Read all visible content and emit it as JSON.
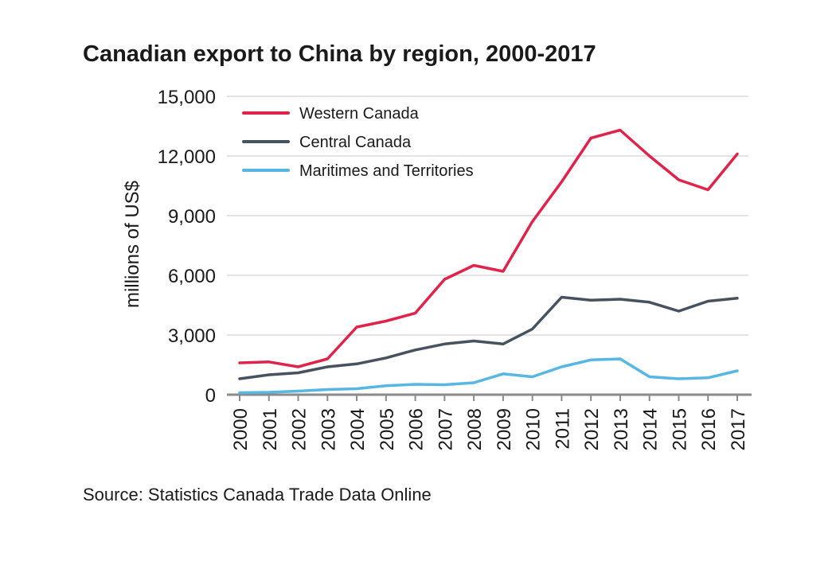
{
  "chart_data": {
    "type": "line",
    "title": "Canadian export to China by region, 2000-2017",
    "xlabel": "",
    "ylabel": "millions of US$",
    "ylim": [
      0,
      15000
    ],
    "yticks": [
      0,
      3000,
      6000,
      9000,
      12000,
      15000
    ],
    "ytick_labels": [
      "0",
      "3,000",
      "6,000",
      "9,000",
      "12,000",
      "15,000"
    ],
    "categories": [
      "2000",
      "2001",
      "2002",
      "2003",
      "2004",
      "2005",
      "2006",
      "2007",
      "2008",
      "2009",
      "2010",
      "2011",
      "2012",
      "2013",
      "2014",
      "2015",
      "2016",
      "2017"
    ],
    "grid": true,
    "legend_position": "top-left",
    "series": [
      {
        "name": "Western Canada",
        "color": "#e0234a",
        "values": [
          1600,
          1650,
          1400,
          1800,
          3400,
          3700,
          4100,
          5800,
          6500,
          6200,
          8700,
          10700,
          12900,
          13300,
          12000,
          10800,
          10300,
          12100
        ]
      },
      {
        "name": "Central Canada",
        "color": "#46525e",
        "values": [
          800,
          1000,
          1100,
          1400,
          1550,
          1850,
          2250,
          2550,
          2700,
          2550,
          3300,
          4900,
          4750,
          4800,
          4650,
          4200,
          4700,
          4850
        ]
      },
      {
        "name": "Maritimes and Territories",
        "color": "#56b6e4",
        "values": [
          100,
          120,
          180,
          260,
          300,
          450,
          520,
          500,
          600,
          1050,
          900,
          1400,
          1750,
          1800,
          900,
          800,
          850,
          1200
        ]
      }
    ]
  },
  "source": "Source: Statistics Canada Trade Data Online"
}
